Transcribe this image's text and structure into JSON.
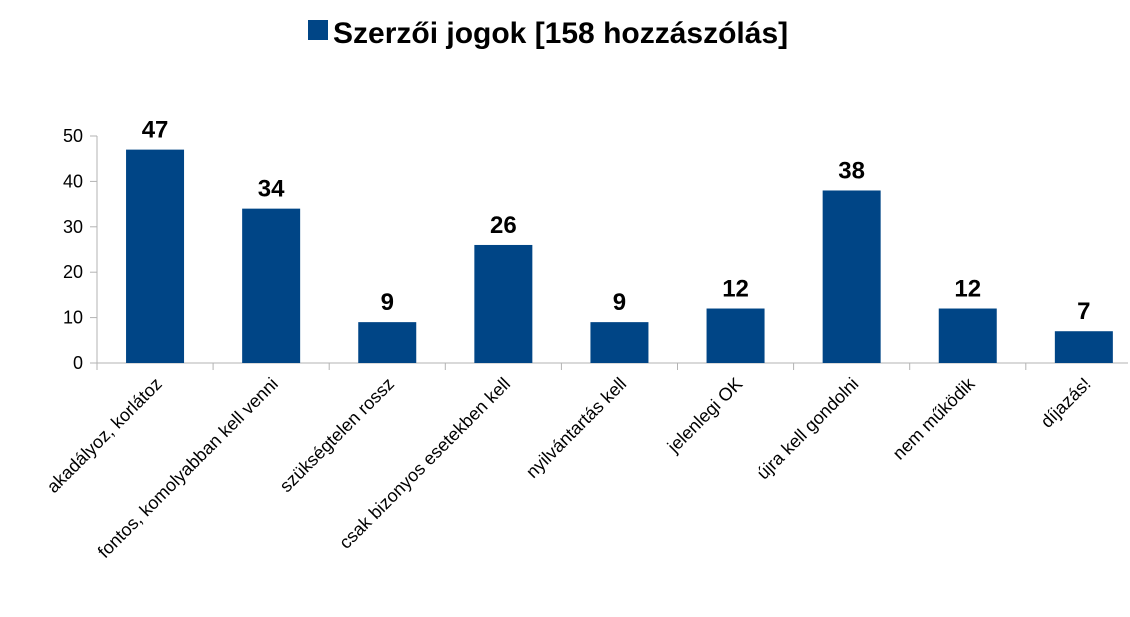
{
  "chart_data": {
    "type": "bar",
    "categories": [
      "akadályoz, korlátoz",
      "fontos, komolyabban kell venni",
      "szükségtelen rossz",
      "csak bizonyos esetekben kell",
      "nyilvántartás kell",
      "jelenlegi OK",
      "újra kell gondolni",
      "nem működik",
      "díjazás!"
    ],
    "series": [
      {
        "name": "Szerzői jogok [158 hozzászólás]",
        "color": "#004586",
        "values": [
          47,
          34,
          9,
          26,
          9,
          12,
          38,
          12,
          7
        ]
      }
    ],
    "ylim": [
      0,
      50
    ],
    "yticks": [
      0,
      10,
      20,
      30,
      40,
      50
    ],
    "grid": false,
    "legend": "top",
    "data_labels": true
  }
}
